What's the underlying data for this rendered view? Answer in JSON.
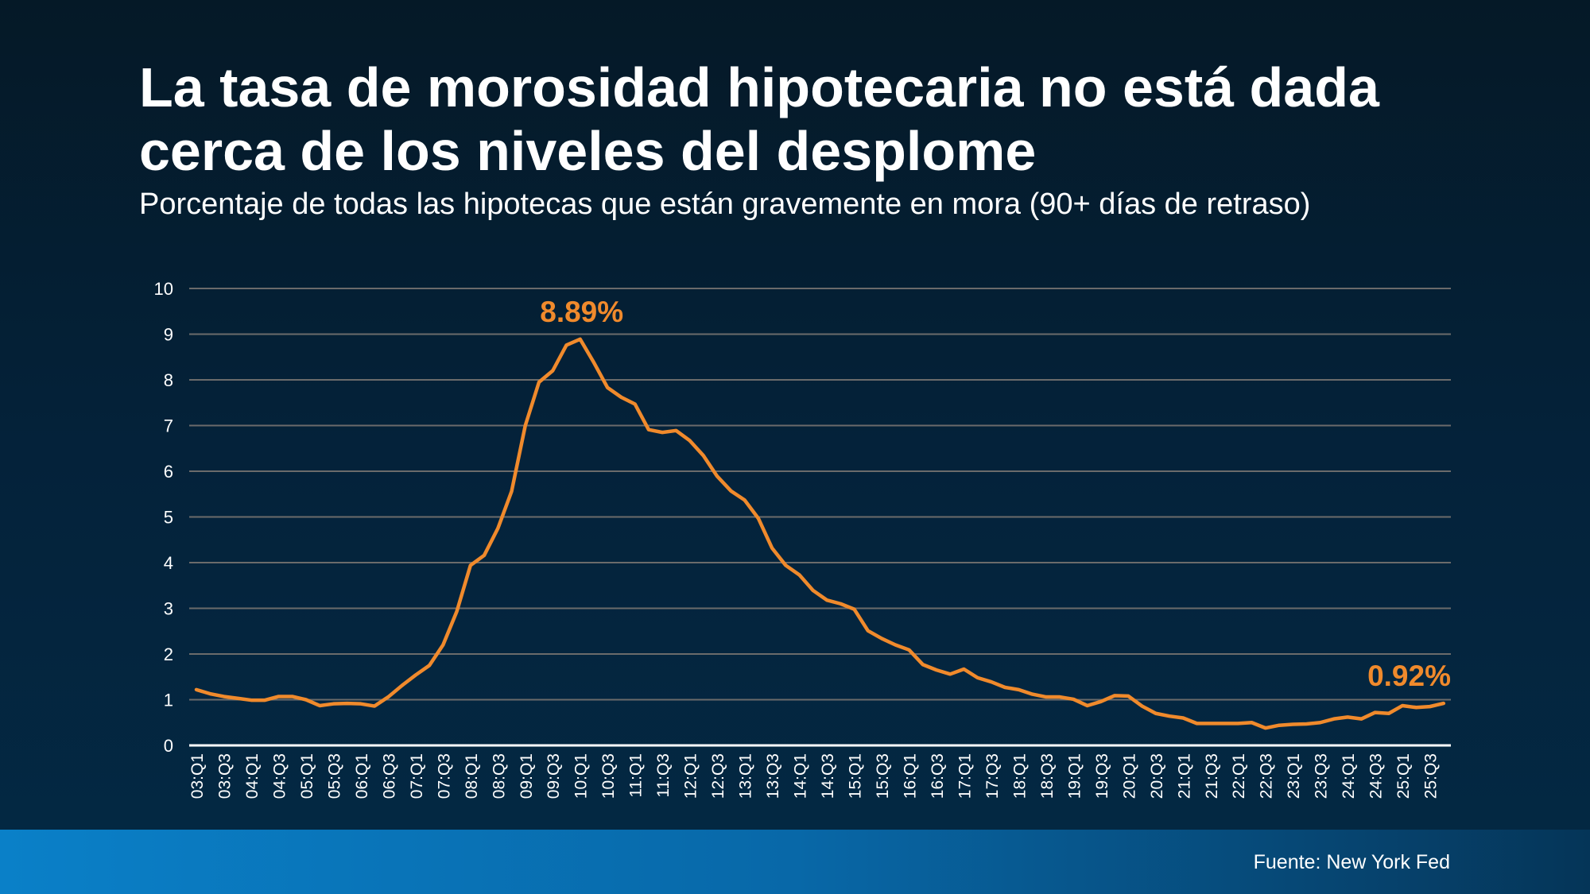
{
  "title_line1": "La tasa de morosidad hipotecaria no está dada",
  "title_line2": "cerca de los niveles del desplome",
  "subtitle": "Porcentaje de todas las hipotecas que están gravemente en mora (90+ días de retraso)",
  "source": "Fuente: New York Fed",
  "colors": {
    "line": "#f08a2c",
    "grid": "#6b6b6b",
    "axis": "#ffffff",
    "text": "#ffffff"
  },
  "chart_data": {
    "type": "line",
    "title": "",
    "xlabel": "",
    "ylabel": "",
    "ylim": [
      0,
      10
    ],
    "yticks": [
      "0",
      "1",
      "2",
      "3",
      "4",
      "5",
      "6",
      "7",
      "8",
      "9",
      "10"
    ],
    "grid": true,
    "x_tick_labels": [
      "03:Q1",
      "03:Q3",
      "04:Q1",
      "04:Q3",
      "05:Q1",
      "05:Q3",
      "06:Q1",
      "06:Q3",
      "07:Q1",
      "07:Q3",
      "08:Q1",
      "08:Q3",
      "09:Q1",
      "09:Q3",
      "10:Q1",
      "10:Q3",
      "11:Q1",
      "11:Q3",
      "12:Q1",
      "12:Q3",
      "13:Q1",
      "13:Q3",
      "14:Q1",
      "14:Q3",
      "15:Q1",
      "15:Q3",
      "16:Q1",
      "16:Q3",
      "17:Q1",
      "17:Q3",
      "18:Q1",
      "18:Q3",
      "19:Q1",
      "19:Q3",
      "20:Q1",
      "20:Q3",
      "21:Q1",
      "21:Q3",
      "22:Q1",
      "22:Q3",
      "23:Q1",
      "23:Q3",
      "24:Q1",
      "24:Q3",
      "25:Q1",
      "25:Q3"
    ],
    "values": [
      1.22,
      1.13,
      1.07,
      1.03,
      0.99,
      0.99,
      1.07,
      1.07,
      1.0,
      0.87,
      0.91,
      0.92,
      0.91,
      0.86,
      1.06,
      1.31,
      1.54,
      1.75,
      2.2,
      2.93,
      3.94,
      4.16,
      4.75,
      5.56,
      7.0,
      7.95,
      8.2,
      8.76,
      8.89,
      8.38,
      7.83,
      7.62,
      7.47,
      6.91,
      6.85,
      6.89,
      6.67,
      6.34,
      5.89,
      5.57,
      5.37,
      4.97,
      4.32,
      3.94,
      3.73,
      3.39,
      3.18,
      3.1,
      2.98,
      2.51,
      2.34,
      2.2,
      2.09,
      1.77,
      1.65,
      1.56,
      1.67,
      1.48,
      1.39,
      1.27,
      1.22,
      1.12,
      1.06,
      1.06,
      1.01,
      0.87,
      0.96,
      1.09,
      1.08,
      0.86,
      0.7,
      0.64,
      0.6,
      0.48,
      0.48,
      0.48,
      0.48,
      0.5,
      0.38,
      0.44,
      0.46,
      0.47,
      0.5,
      0.58,
      0.62,
      0.58,
      0.72,
      0.7,
      0.87,
      0.83,
      0.85,
      0.92
    ],
    "annotations": [
      {
        "text": "8.89%",
        "at": "10:Q1",
        "value": 8.89
      },
      {
        "text": "0.92%",
        "at": "last",
        "value": 0.92
      }
    ]
  }
}
